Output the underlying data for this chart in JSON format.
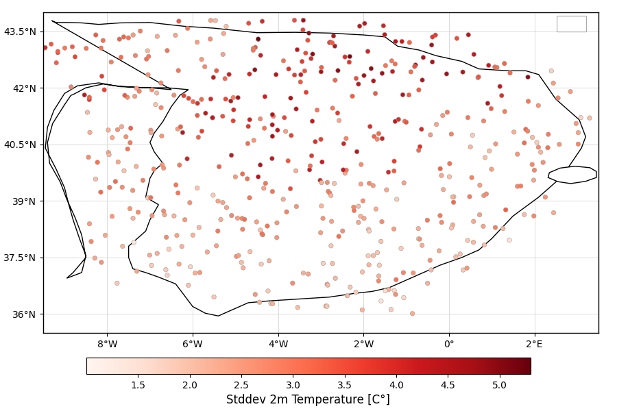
{
  "xlim": [
    -9.5,
    3.5
  ],
  "ylim": [
    35.5,
    44.0
  ],
  "xticks": [
    -8,
    -6,
    -4,
    -2,
    0,
    2
  ],
  "yticks": [
    36,
    37.5,
    39,
    40.5,
    42,
    43.5
  ],
  "cmap": "Reds",
  "vmin": 1.0,
  "vmax": 5.3,
  "colorbar_ticks": [
    1.5,
    2.0,
    2.5,
    3.0,
    3.5,
    4.0,
    4.5,
    5.0
  ],
  "colorbar_label": "Stddev 2m Temperature [C°]",
  "marker_size": 22,
  "edgecolor": "#999999",
  "edgewidth": 0.4,
  "background_color": "#ffffff",
  "grid_color": "#cccccc",
  "figsize": [
    9.0,
    6.0
  ],
  "dpi": 100,
  "coast_linewidth": 1.0,
  "coast_color": "black",
  "n_stations": 500,
  "random_seed": 12
}
